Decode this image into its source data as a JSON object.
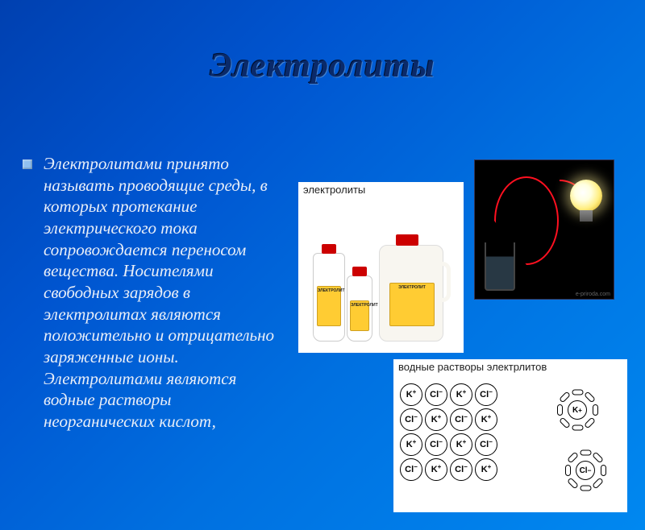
{
  "slide": {
    "title": "Электролиты",
    "body_text": "Электролитами принято называть проводящие среды, в которых протекание электрического тока сопровождается переносом вещества. Носителями свободных зарядов в электролитах являются положительно и отрицательно заряженные ионы. Электролитами являются водные растворы неорганических кислот,",
    "bullet_color": "#90c0f0",
    "title_color": "#0a2a6a",
    "text_color": "#e8eef8",
    "background_gradient": [
      "#0040b0",
      "#0055d0",
      "#0070e0",
      "#0088f0"
    ]
  },
  "images": {
    "bottles": {
      "caption": "электролиты",
      "bottle_label": "ЭЛЕКТРОЛИТ",
      "cap_color": "#c00",
      "label_color": "#ffcc33"
    },
    "lamp": {
      "background": "#000",
      "wire_color": "#ff1020",
      "bulb_glow": "#ffffe0",
      "watermark": "e-priroda.com"
    },
    "ions": {
      "caption": "водные растворы электрлитов",
      "cation": "K",
      "cation_charge": "+",
      "anion": "Cl",
      "anion_charge": "−",
      "grid_rows": 4,
      "grid_cols": 4,
      "free_ion_count": 2
    }
  }
}
